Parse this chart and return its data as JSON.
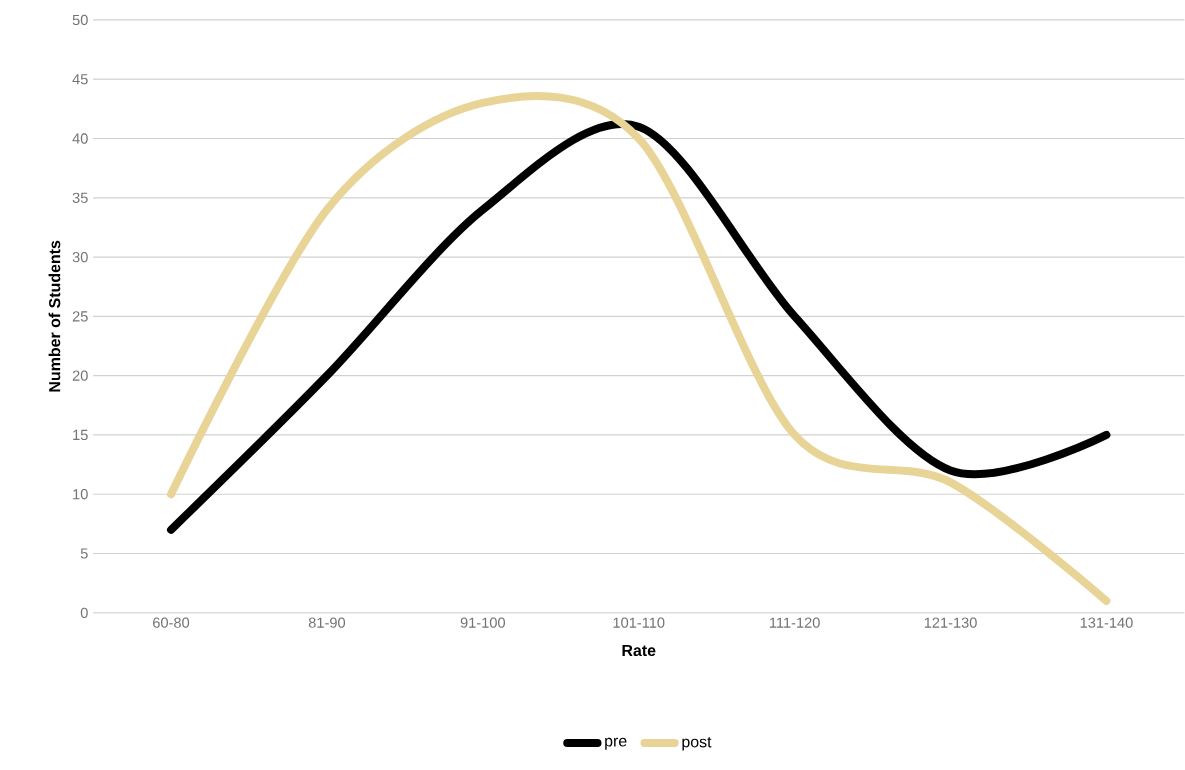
{
  "chart_data": {
    "type": "line",
    "xlabel": "Rate",
    "ylabel": "Number of Students",
    "categories": [
      "60-80",
      "81-90",
      "91-100",
      "101-110",
      "111-120",
      "121-130",
      "131-140"
    ],
    "series": [
      {
        "name": "pre",
        "color": "#000000",
        "values": [
          7,
          20,
          34,
          41,
          25,
          12,
          15
        ]
      },
      {
        "name": "post",
        "color": "#e8d497",
        "values": [
          10,
          34,
          43,
          40,
          15,
          11,
          1
        ]
      }
    ],
    "ylim": [
      0,
      50
    ],
    "yticks": [
      0,
      5,
      10,
      15,
      20,
      25,
      30,
      35,
      40,
      45,
      50
    ],
    "grid": "y",
    "legend": "bottom"
  }
}
